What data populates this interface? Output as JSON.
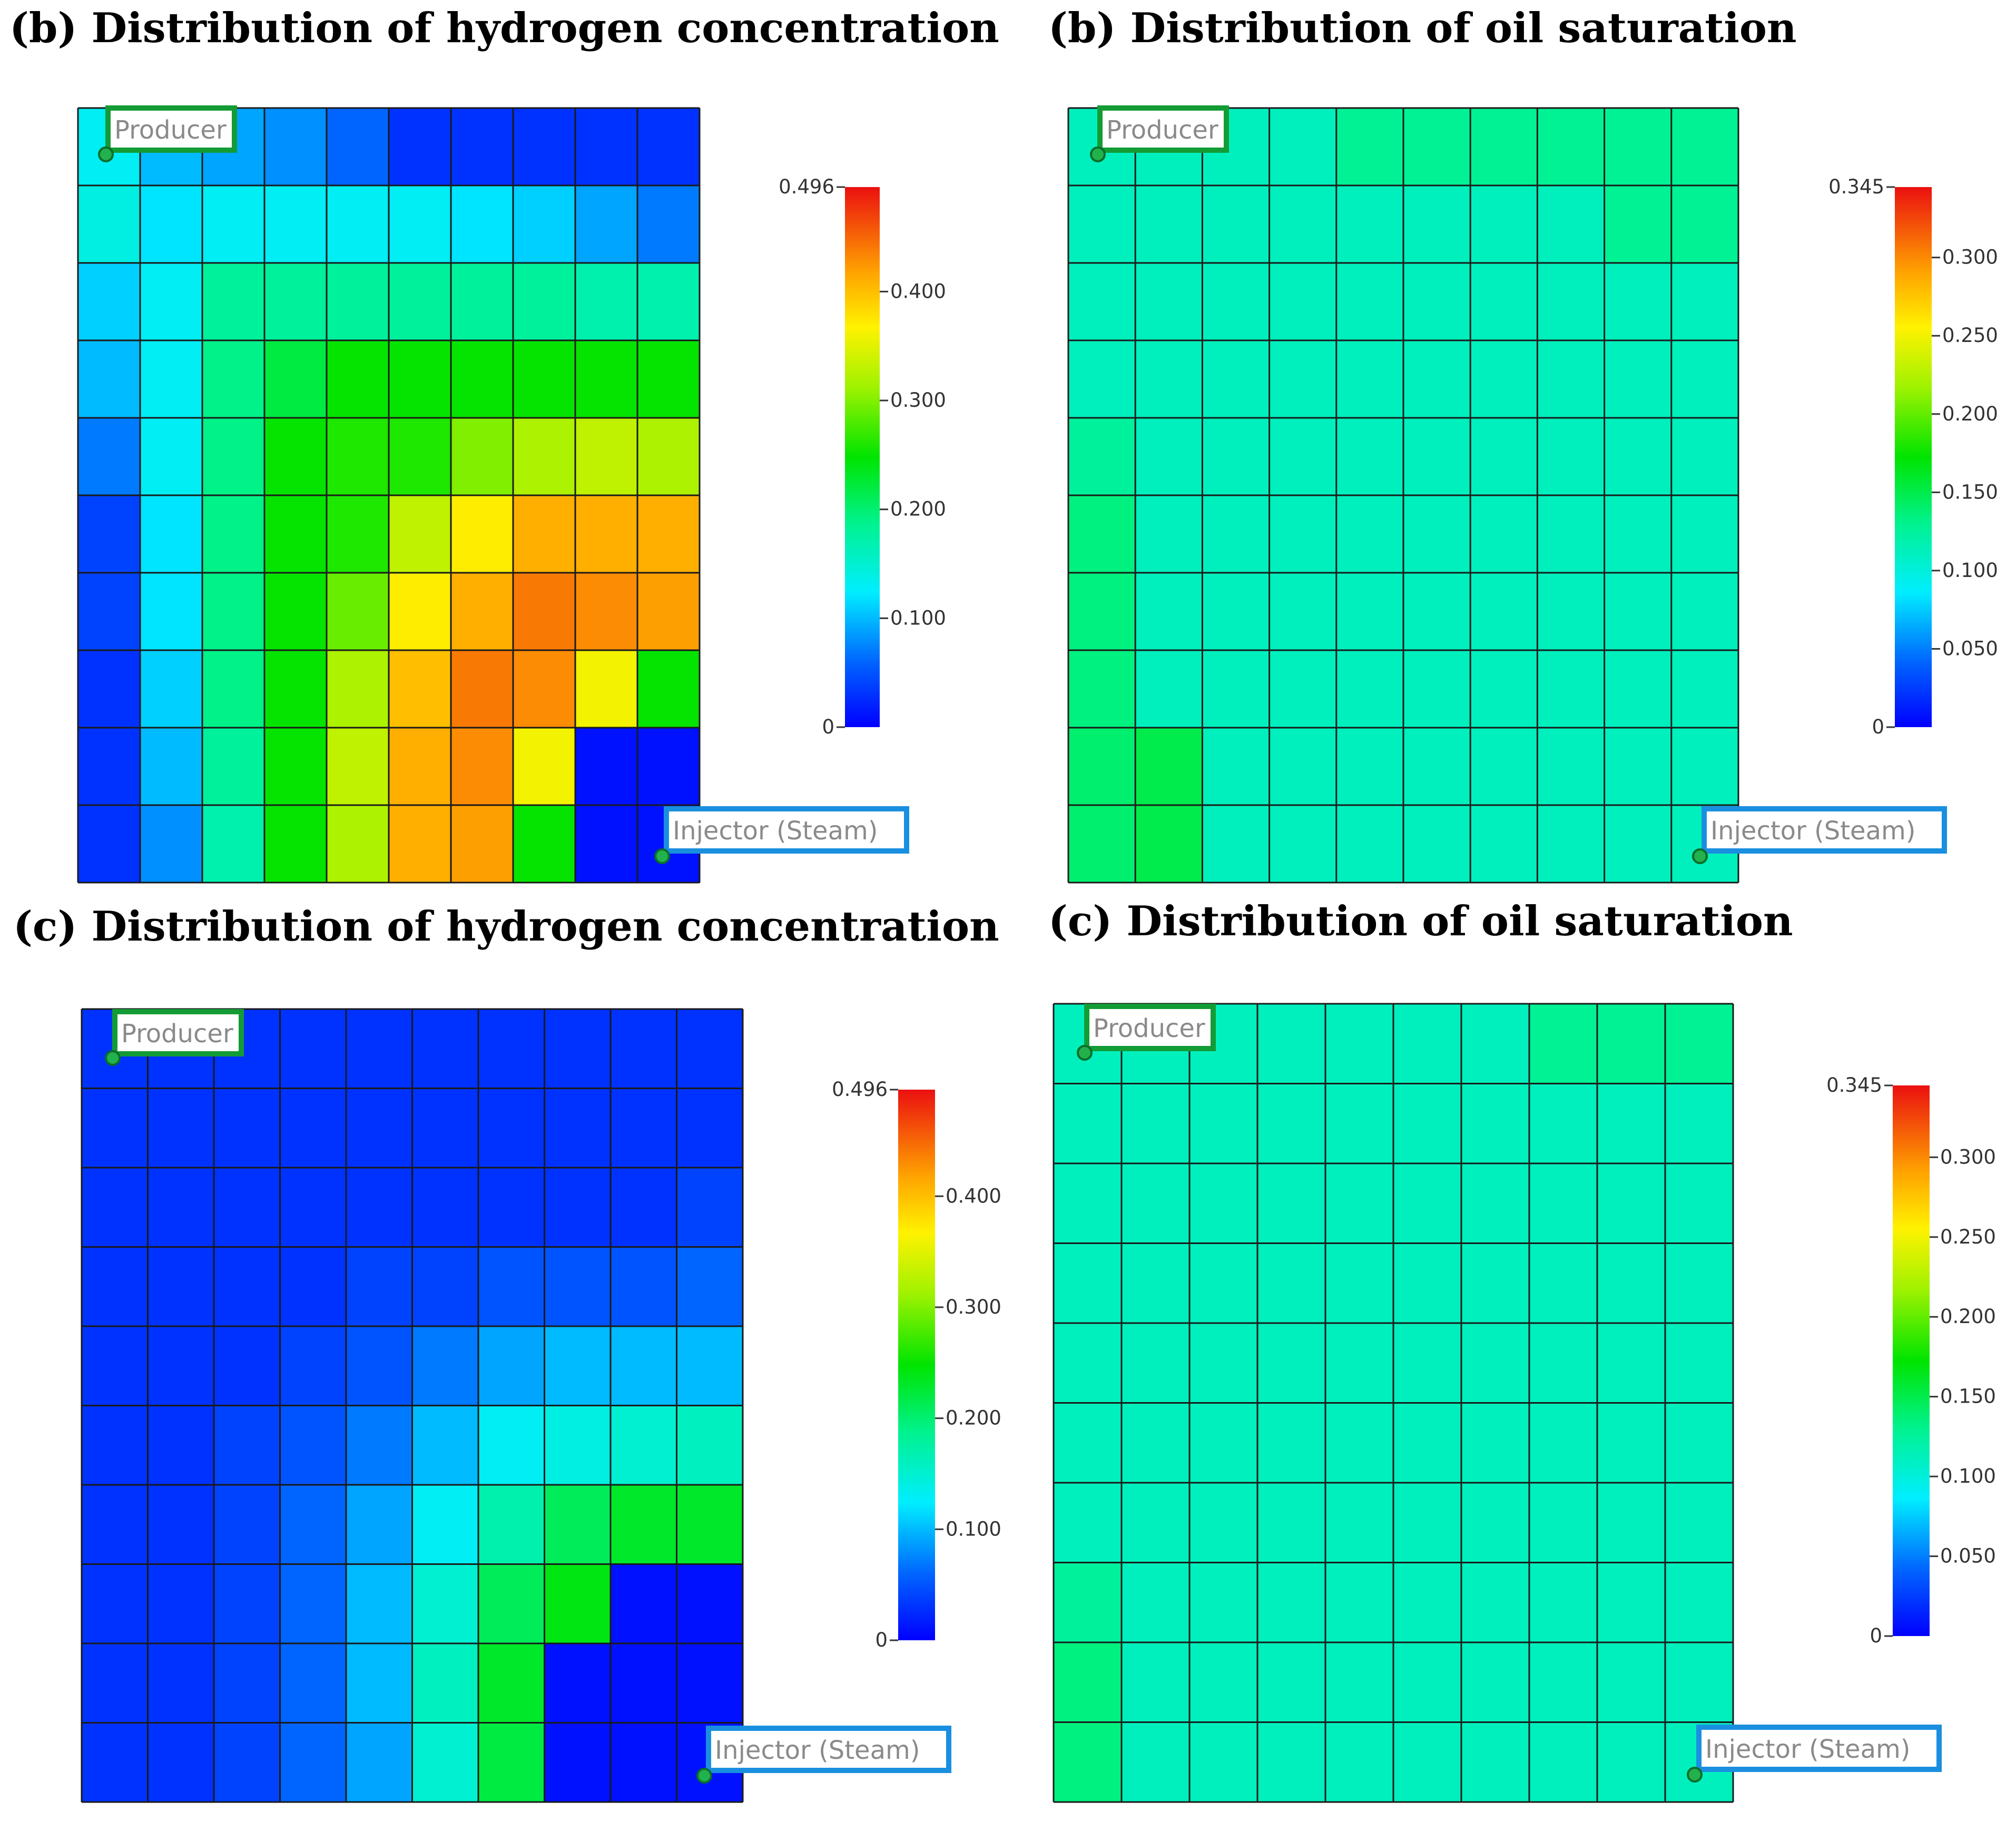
{
  "chart_data": [
    {
      "type": "heatmap",
      "id": "b-hydrogen",
      "title": "(b) Distribution of hydrogen concentration",
      "colormap": "rainbow",
      "colorbar": {
        "min": 0,
        "max": 0.496,
        "min_label": "0",
        "max_label": "0.496",
        "ticks": [
          0.1,
          0.2,
          0.3,
          0.4
        ],
        "tick_labels": [
          "0.100",
          "0.200",
          "0.300",
          "0.400"
        ]
      },
      "grid": [
        [
          0.13,
          0.1,
          0.09,
          0.08,
          0.06,
          0.03,
          0.03,
          0.03,
          0.03,
          0.03
        ],
        [
          0.14,
          0.12,
          0.13,
          0.13,
          0.13,
          0.13,
          0.12,
          0.11,
          0.09,
          0.07
        ],
        [
          0.11,
          0.13,
          0.18,
          0.18,
          0.18,
          0.18,
          0.18,
          0.18,
          0.17,
          0.17
        ],
        [
          0.1,
          0.13,
          0.19,
          0.22,
          0.25,
          0.25,
          0.25,
          0.25,
          0.25,
          0.25
        ],
        [
          0.07,
          0.13,
          0.19,
          0.25,
          0.26,
          0.26,
          0.3,
          0.32,
          0.33,
          0.32
        ],
        [
          0.04,
          0.12,
          0.19,
          0.25,
          0.26,
          0.33,
          0.37,
          0.41,
          0.41,
          0.41
        ],
        [
          0.04,
          0.12,
          0.19,
          0.25,
          0.29,
          0.37,
          0.41,
          0.44,
          0.43,
          0.42
        ],
        [
          0.03,
          0.11,
          0.19,
          0.25,
          0.32,
          0.4,
          0.44,
          0.43,
          0.36,
          0.25
        ],
        [
          0.03,
          0.1,
          0.18,
          0.25,
          0.33,
          0.41,
          0.43,
          0.36,
          0.01,
          0.01
        ],
        [
          0.03,
          0.08,
          0.17,
          0.25,
          0.32,
          0.41,
          0.42,
          0.25,
          0.01,
          0.01
        ]
      ],
      "producer_label": "Producer",
      "injector_label": "Injector (Steam)"
    },
    {
      "type": "heatmap",
      "id": "b-oil",
      "title": "(b) Distribution of oil saturation",
      "colormap": "rainbow",
      "colorbar": {
        "min": 0,
        "max": 0.345,
        "min_label": "0",
        "max_label": "0.345",
        "ticks": [
          0.05,
          0.1,
          0.15,
          0.2,
          0.25,
          0.3
        ],
        "tick_labels": [
          "0.050",
          "0.100",
          "0.150",
          "0.200",
          "0.250",
          "0.300"
        ]
      },
      "grid": [
        [
          0.112,
          0.112,
          0.112,
          0.112,
          0.128,
          0.128,
          0.128,
          0.128,
          0.128,
          0.128
        ],
        [
          0.112,
          0.112,
          0.112,
          0.112,
          0.112,
          0.112,
          0.112,
          0.112,
          0.128,
          0.128
        ],
        [
          0.112,
          0.112,
          0.112,
          0.112,
          0.112,
          0.112,
          0.112,
          0.112,
          0.112,
          0.112
        ],
        [
          0.112,
          0.112,
          0.112,
          0.112,
          0.112,
          0.112,
          0.112,
          0.112,
          0.112,
          0.112
        ],
        [
          0.125,
          0.112,
          0.112,
          0.112,
          0.112,
          0.112,
          0.112,
          0.112,
          0.112,
          0.112
        ],
        [
          0.135,
          0.112,
          0.112,
          0.112,
          0.112,
          0.112,
          0.112,
          0.112,
          0.112,
          0.112
        ],
        [
          0.135,
          0.112,
          0.112,
          0.112,
          0.112,
          0.112,
          0.112,
          0.112,
          0.112,
          0.112
        ],
        [
          0.135,
          0.112,
          0.112,
          0.112,
          0.112,
          0.112,
          0.112,
          0.112,
          0.112,
          0.112
        ],
        [
          0.14,
          0.15,
          0.112,
          0.112,
          0.112,
          0.112,
          0.112,
          0.112,
          0.112,
          0.112
        ],
        [
          0.14,
          0.15,
          0.112,
          0.112,
          0.112,
          0.112,
          0.112,
          0.112,
          0.112,
          0.112
        ]
      ],
      "producer_label": "Producer",
      "injector_label": "Injector (Steam)"
    },
    {
      "type": "heatmap",
      "id": "c-hydrogen",
      "title": "(c) Distribution of hydrogen concentration",
      "colormap": "rainbow",
      "colorbar": {
        "min": 0,
        "max": 0.496,
        "min_label": "0",
        "max_label": "0.496",
        "ticks": [
          0.1,
          0.2,
          0.3,
          0.4
        ],
        "tick_labels": [
          "0.100",
          "0.200",
          "0.300",
          "0.400"
        ]
      },
      "grid": [
        [
          0.03,
          0.03,
          0.03,
          0.03,
          0.03,
          0.03,
          0.03,
          0.03,
          0.03,
          0.03
        ],
        [
          0.03,
          0.03,
          0.03,
          0.03,
          0.03,
          0.03,
          0.03,
          0.03,
          0.03,
          0.03
        ],
        [
          0.03,
          0.03,
          0.03,
          0.03,
          0.03,
          0.03,
          0.03,
          0.03,
          0.03,
          0.04
        ],
        [
          0.03,
          0.03,
          0.03,
          0.03,
          0.04,
          0.04,
          0.05,
          0.05,
          0.05,
          0.06
        ],
        [
          0.03,
          0.03,
          0.03,
          0.04,
          0.05,
          0.07,
          0.09,
          0.1,
          0.1,
          0.1
        ],
        [
          0.03,
          0.03,
          0.04,
          0.05,
          0.07,
          0.1,
          0.13,
          0.14,
          0.15,
          0.16
        ],
        [
          0.03,
          0.03,
          0.04,
          0.06,
          0.09,
          0.13,
          0.17,
          0.21,
          0.23,
          0.23
        ],
        [
          0.03,
          0.03,
          0.04,
          0.06,
          0.1,
          0.15,
          0.21,
          0.24,
          0.01,
          0.01
        ],
        [
          0.03,
          0.03,
          0.04,
          0.06,
          0.1,
          0.16,
          0.23,
          0.01,
          0.01,
          0.01
        ],
        [
          0.03,
          0.03,
          0.04,
          0.06,
          0.09,
          0.15,
          0.22,
          0.01,
          0.01,
          0.01
        ]
      ],
      "producer_label": "Producer",
      "injector_label": "Injector (Steam)"
    },
    {
      "type": "heatmap",
      "id": "c-oil",
      "title": "(c) Distribution of oil saturation",
      "colormap": "rainbow",
      "colorbar": {
        "min": 0,
        "max": 0.345,
        "min_label": "0",
        "max_label": "0.345",
        "ticks": [
          0.05,
          0.1,
          0.15,
          0.2,
          0.25,
          0.3
        ],
        "tick_labels": [
          "0.050",
          "0.100",
          "0.150",
          "0.200",
          "0.250",
          "0.300"
        ]
      },
      "grid": [
        [
          0.112,
          0.112,
          0.112,
          0.112,
          0.112,
          0.112,
          0.112,
          0.128,
          0.128,
          0.128
        ],
        [
          0.112,
          0.112,
          0.112,
          0.112,
          0.112,
          0.112,
          0.112,
          0.112,
          0.112,
          0.112
        ],
        [
          0.112,
          0.112,
          0.112,
          0.112,
          0.112,
          0.112,
          0.112,
          0.112,
          0.112,
          0.112
        ],
        [
          0.112,
          0.112,
          0.112,
          0.112,
          0.112,
          0.112,
          0.112,
          0.112,
          0.112,
          0.112
        ],
        [
          0.112,
          0.112,
          0.112,
          0.112,
          0.112,
          0.112,
          0.112,
          0.112,
          0.112,
          0.112
        ],
        [
          0.112,
          0.112,
          0.112,
          0.112,
          0.112,
          0.112,
          0.112,
          0.112,
          0.112,
          0.112
        ],
        [
          0.112,
          0.112,
          0.112,
          0.112,
          0.112,
          0.112,
          0.112,
          0.112,
          0.112,
          0.112
        ],
        [
          0.125,
          0.112,
          0.112,
          0.112,
          0.112,
          0.112,
          0.112,
          0.112,
          0.112,
          0.112
        ],
        [
          0.135,
          0.112,
          0.112,
          0.112,
          0.112,
          0.112,
          0.112,
          0.112,
          0.112,
          0.112
        ],
        [
          0.135,
          0.112,
          0.112,
          0.112,
          0.112,
          0.112,
          0.112,
          0.112,
          0.112,
          0.112
        ]
      ],
      "producer_label": "Producer",
      "injector_label": "Injector (Steam)"
    }
  ],
  "colors": {
    "producer_box": "#139c35",
    "injector_box": "#1a8fe0",
    "well_marker": "#22b14c",
    "grid_line": "#1a1a1a",
    "title": "#000000"
  }
}
